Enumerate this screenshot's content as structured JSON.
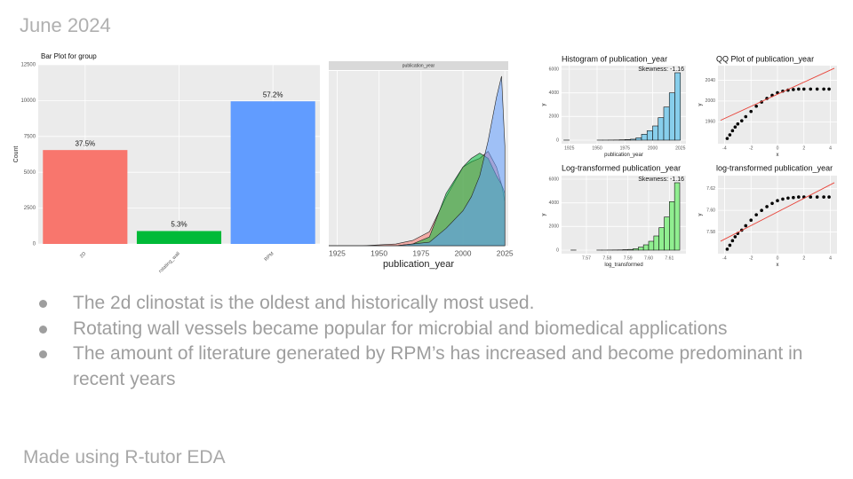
{
  "title": "June 2024",
  "bullets": [
    "The 2d clinostat is the oldest and historically most used.",
    "Rotating wall vessels became popular for microbial and biomedical applications",
    "The amount of literature generated by RPM’s has increased and become predominant in recent years"
  ],
  "footer": "Made using R-tutor EDA",
  "chart_data": [
    {
      "type": "bar",
      "title": "Bar Plot for group",
      "y_label": "Count",
      "categories": [
        "2D",
        "rotating_wall",
        "RPM"
      ],
      "values": [
        6550,
        900,
        9950
      ],
      "annotations": [
        "37.5%",
        "5.3%",
        "57.2%"
      ],
      "colors": [
        "#f8766d",
        "#00ba38",
        "#619cff"
      ],
      "ylim": [
        0,
        12500
      ],
      "yticks": [
        0,
        2500,
        5000,
        7500,
        10000,
        12500
      ],
      "grid": true
    },
    {
      "type": "area",
      "strip": "publication_year",
      "x_label": "publication_year",
      "x": [
        1920,
        1940,
        1960,
        1970,
        1980,
        1990,
        2000,
        2005,
        2010,
        2015,
        2020,
        2023,
        2025
      ],
      "series": [
        {
          "color": "#f8766d",
          "values": [
            0,
            0,
            0.01,
            0.03,
            0.08,
            0.28,
            0.45,
            0.48,
            0.5,
            0.54,
            0.45,
            0.35,
            0.25
          ]
        },
        {
          "color": "#00ba38",
          "values": [
            0,
            0,
            0,
            0.01,
            0.05,
            0.3,
            0.45,
            0.5,
            0.53,
            0.5,
            0.4,
            0.35,
            0.3
          ]
        },
        {
          "color": "#619cff",
          "values": [
            0,
            0,
            0,
            0.01,
            0.02,
            0.1,
            0.2,
            0.28,
            0.4,
            0.6,
            0.85,
            0.97,
            0.57
          ]
        }
      ],
      "xlim": [
        1920,
        2027
      ],
      "xticks": [
        1925,
        1950,
        1975,
        2000,
        2025
      ],
      "ylim": [
        0,
        1
      ],
      "grid": true
    },
    {
      "type": "histogram",
      "title": "Histogram of publication_year",
      "annotation": "Skewness: -1.16",
      "x_label": "publication_year",
      "y_label": "y",
      "color": "#87ceeb",
      "bins": [
        1920,
        1925,
        1930,
        1935,
        1940,
        1945,
        1950,
        1955,
        1960,
        1965,
        1970,
        1975,
        1980,
        1985,
        1990,
        1995,
        2000,
        2005,
        2010,
        2015,
        2020,
        2025
      ],
      "counts": [
        5,
        0,
        0,
        0,
        0,
        0,
        5,
        5,
        10,
        15,
        30,
        50,
        80,
        200,
        500,
        800,
        1200,
        1900,
        2800,
        4000,
        5700
      ],
      "xlim": [
        1918,
        2030
      ],
      "xticks": [
        1925,
        1950,
        1975,
        2000,
        2025
      ],
      "ylim": [
        -300,
        6300
      ],
      "yticks": [
        0,
        2000,
        4000,
        6000
      ],
      "grid": true
    },
    {
      "type": "qq",
      "title": "QQ Plot of publication_year",
      "x_label": "x",
      "y_label": "y",
      "x": [
        -3.8,
        -3.6,
        -3.4,
        -3.2,
        -3.0,
        -2.7,
        -2.4,
        -2.0,
        -1.6,
        -1.2,
        -0.8,
        -0.4,
        0,
        0.4,
        0.8,
        1.2,
        1.6,
        2.0,
        2.5,
        3.0,
        3.5,
        3.9
      ],
      "y": [
        1928,
        1935,
        1943,
        1950,
        1956,
        1962,
        1970,
        1980,
        1990,
        1998,
        2005,
        2011,
        2016,
        2019,
        2021,
        2022,
        2023,
        2023,
        2023,
        2023,
        2023,
        2023
      ],
      "reference_line": {
        "x": [
          -4.3,
          4.3
        ],
        "y": [
          1963,
          2063
        ]
      },
      "line_color": "#e8443a",
      "xlim": [
        -4.5,
        4.5
      ],
      "xticks": [
        -4,
        -2,
        0,
        2,
        4
      ],
      "ylim": [
        1918,
        2068
      ],
      "yticks": [
        1960,
        2000,
        2040
      ],
      "grid": true
    },
    {
      "type": "histogram",
      "title": "Log-transformed publication_year",
      "annotation": "Skewness: -1.16",
      "x_label": "log_transformed",
      "y_label": "y",
      "color": "#90ee90",
      "bins": [
        7.5625,
        7.565,
        7.5675,
        7.57,
        7.5725,
        7.575,
        7.5775,
        7.58,
        7.5825,
        7.585,
        7.5875,
        7.59,
        7.5925,
        7.595,
        7.5975,
        7.6,
        7.6025,
        7.605,
        7.6075,
        7.61,
        7.6125,
        7.615
      ],
      "counts": [
        5,
        0,
        0,
        0,
        0,
        5,
        5,
        10,
        15,
        20,
        40,
        60,
        120,
        250,
        450,
        750,
        1200,
        1900,
        2800,
        4100,
        5700
      ],
      "xlim": [
        7.558,
        7.618
      ],
      "xticks": [
        7.57,
        7.58,
        7.59,
        {
          "value": 7.6,
          "label": "7.60"
        },
        7.61
      ],
      "ylim": [
        -300,
        6300
      ],
      "yticks": [
        0,
        2000,
        4000,
        6000
      ],
      "grid": true
    },
    {
      "type": "qq",
      "title": "log-transformed publication_year",
      "x_label": "x",
      "y_label": "y",
      "x": [
        -3.8,
        -3.6,
        -3.4,
        -3.2,
        -3.0,
        -2.7,
        -2.4,
        -2.0,
        -1.6,
        -1.2,
        -0.8,
        -0.4,
        0,
        0.4,
        0.8,
        1.2,
        1.6,
        2.0,
        2.5,
        3.0,
        3.5,
        3.9
      ],
      "y": [
        7.5642,
        7.5678,
        7.572,
        7.5756,
        7.5787,
        7.5817,
        7.5858,
        7.5909,
        7.5959,
        7.5999,
        7.6034,
        7.6064,
        7.6089,
        7.6104,
        7.6113,
        7.6118,
        7.6123,
        7.6123,
        7.6123,
        7.6123,
        7.6123,
        7.6123
      ],
      "reference_line": {
        "x": [
          -4.3,
          4.3
        ],
        "y": [
          7.5715,
          7.6255
        ]
      },
      "line_color": "#e8443a",
      "xlim": [
        -4.5,
        4.5
      ],
      "xticks": [
        -4,
        -2,
        0,
        2,
        4
      ],
      "ylim": [
        7.56,
        7.632
      ],
      "yticks": [
        7.58,
        {
          "value": 7.6,
          "label": "7.60"
        },
        7.62
      ],
      "grid": true
    }
  ]
}
